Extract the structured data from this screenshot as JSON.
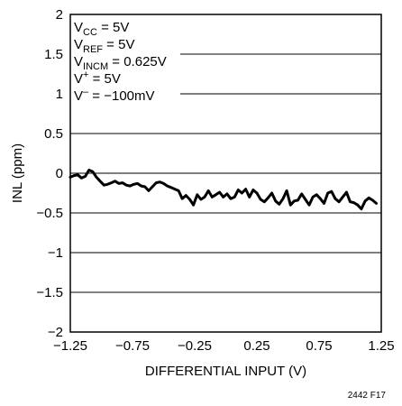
{
  "chart_data": {
    "type": "line",
    "xlabel": "DIFFERENTIAL INPUT (V)",
    "ylabel": "INL (ppm)",
    "xlim": [
      -1.25,
      1.25
    ],
    "ylim": [
      -2,
      2
    ],
    "xticks": [
      -1.25,
      -0.75,
      -0.25,
      0.25,
      0.75,
      1.25
    ],
    "xtick_labels": [
      "−1.25",
      "−0.75",
      "−0.25",
      "0.25",
      "0.75",
      "1.25"
    ],
    "yticks": [
      -2,
      -1.5,
      -1,
      -0.5,
      0,
      0.5,
      1,
      1.5,
      2
    ],
    "ytick_labels": [
      "−2",
      "−1.5",
      "−1",
      "−0.5",
      "0",
      "0.5",
      "1",
      "1.5",
      "2"
    ],
    "grid": "horizontal",
    "conditions": [
      {
        "main": "V",
        "sub": "CC",
        "sup": "",
        "rest": " = 5V"
      },
      {
        "main": "V",
        "sub": "REF",
        "sup": "",
        "rest": " = 5V"
      },
      {
        "main": "V",
        "sub": "INCM",
        "sup": "",
        "rest": " = 0.625V"
      },
      {
        "main": "V",
        "sub": "",
        "sup": "+",
        "rest": " = 5V"
      },
      {
        "main": "V",
        "sub": "",
        "sup": "–",
        "rest": " = −100mV"
      }
    ],
    "figure_id": "2442 F17",
    "series": [
      {
        "color": "#000000",
        "x": [
          -1.25,
          -1.22,
          -1.19,
          -1.16,
          -1.13,
          -1.1,
          -1.07,
          -1.04,
          -1.01,
          -0.98,
          -0.95,
          -0.92,
          -0.89,
          -0.86,
          -0.83,
          -0.8,
          -0.77,
          -0.74,
          -0.71,
          -0.68,
          -0.65,
          -0.62,
          -0.59,
          -0.56,
          -0.53,
          -0.5,
          -0.47,
          -0.44,
          -0.41,
          -0.38,
          -0.35,
          -0.32,
          -0.29,
          -0.26,
          -0.23,
          -0.2,
          -0.17,
          -0.14,
          -0.11,
          -0.08,
          -0.05,
          -0.02,
          0.01,
          0.04,
          0.07,
          0.1,
          0.13,
          0.16,
          0.19,
          0.22,
          0.25,
          0.28,
          0.31,
          0.34,
          0.37,
          0.4,
          0.43,
          0.46,
          0.49,
          0.52,
          0.55,
          0.58,
          0.61,
          0.64,
          0.67,
          0.7,
          0.73,
          0.76,
          0.79,
          0.82,
          0.85,
          0.88,
          0.91,
          0.94,
          0.97,
          1.0,
          1.03,
          1.06,
          1.09,
          1.12,
          1.15,
          1.18,
          1.21
        ],
        "y": [
          -0.05,
          -0.03,
          -0.02,
          -0.06,
          -0.04,
          0.04,
          0.02,
          -0.05,
          -0.1,
          -0.15,
          -0.14,
          -0.12,
          -0.1,
          -0.13,
          -0.12,
          -0.15,
          -0.16,
          -0.14,
          -0.13,
          -0.16,
          -0.17,
          -0.22,
          -0.17,
          -0.12,
          -0.11,
          -0.13,
          -0.16,
          -0.18,
          -0.2,
          -0.22,
          -0.32,
          -0.28,
          -0.33,
          -0.4,
          -0.27,
          -0.33,
          -0.3,
          -0.22,
          -0.3,
          -0.27,
          -0.24,
          -0.3,
          -0.26,
          -0.32,
          -0.3,
          -0.21,
          -0.25,
          -0.2,
          -0.3,
          -0.21,
          -0.25,
          -0.33,
          -0.36,
          -0.31,
          -0.25,
          -0.35,
          -0.39,
          -0.32,
          -0.22,
          -0.4,
          -0.35,
          -0.34,
          -0.26,
          -0.33,
          -0.4,
          -0.3,
          -0.27,
          -0.32,
          -0.38,
          -0.25,
          -0.23,
          -0.32,
          -0.36,
          -0.3,
          -0.24,
          -0.36,
          -0.37,
          -0.4,
          -0.45,
          -0.35,
          -0.31,
          -0.34,
          -0.38
        ]
      }
    ]
  }
}
